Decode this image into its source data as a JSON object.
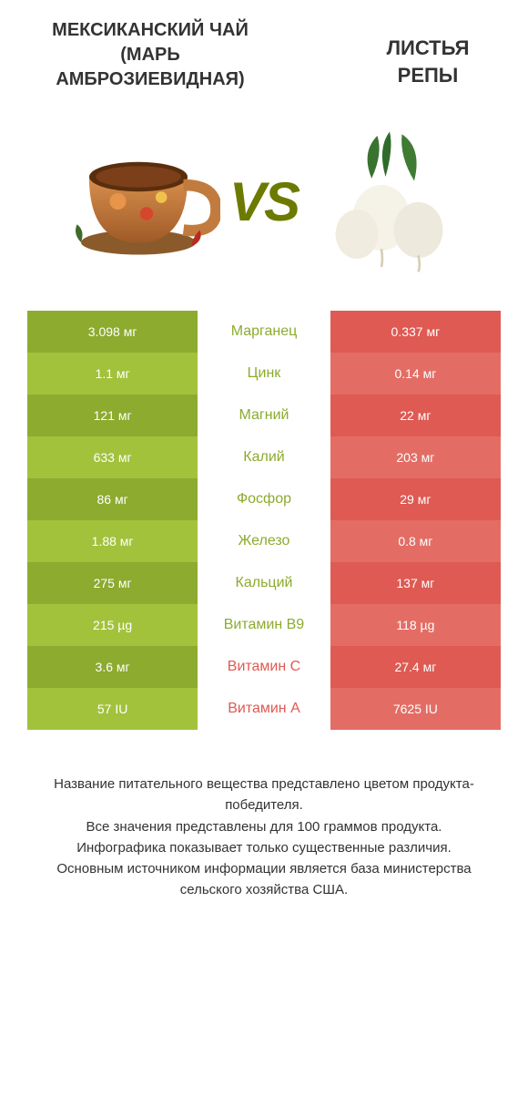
{
  "titles": {
    "left": "МЕКСИКАНСКИЙ ЧАЙ (МАРЬ АМБРОЗИЕВИДНАЯ)",
    "right": "ЛИСТЬЯ РЕПЫ"
  },
  "vs_label": "VS",
  "colors": {
    "green_dark": "#8cab2f",
    "green_light": "#a2c23c",
    "green_mid_text": "#8cab2f",
    "red_dark": "#de5a52",
    "red_light": "#e36d65",
    "red_mid_text": "#de5a52",
    "row_bg_even": "#ffffff",
    "row_bg_odd": "#ffffff"
  },
  "rows": [
    {
      "left": "3.098 мг",
      "mid": "Марганец",
      "right": "0.337 мг",
      "winner": "left"
    },
    {
      "left": "1.1 мг",
      "mid": "Цинк",
      "right": "0.14 мг",
      "winner": "left"
    },
    {
      "left": "121 мг",
      "mid": "Магний",
      "right": "22 мг",
      "winner": "left"
    },
    {
      "left": "633 мг",
      "mid": "Калий",
      "right": "203 мг",
      "winner": "left"
    },
    {
      "left": "86 мг",
      "mid": "Фосфор",
      "right": "29 мг",
      "winner": "left"
    },
    {
      "left": "1.88 мг",
      "mid": "Железо",
      "right": "0.8 мг",
      "winner": "left"
    },
    {
      "left": "275 мг",
      "mid": "Кальций",
      "right": "137 мг",
      "winner": "left"
    },
    {
      "left": "215 µg",
      "mid": "Витамин B9",
      "right": "118 µg",
      "winner": "left"
    },
    {
      "left": "3.6 мг",
      "mid": "Витамин C",
      "right": "27.4 мг",
      "winner": "right"
    },
    {
      "left": "57 IU",
      "mid": "Витамин A",
      "right": "7625 IU",
      "winner": "right"
    }
  ],
  "footer": [
    "Название питательного вещества представлено цветом продукта-победителя.",
    "Все значения представлены для 100 граммов продукта.",
    "Инфографика показывает только существенные различия.",
    "Основным источником информации является база министерства сельского хозяйства США."
  ]
}
